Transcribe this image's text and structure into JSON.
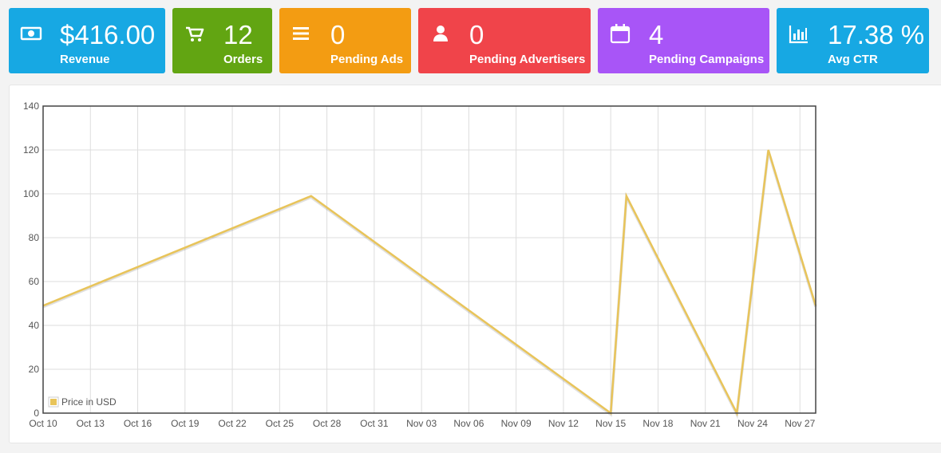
{
  "stats": [
    {
      "id": "revenue",
      "value": "$416.00",
      "label": "Revenue",
      "icon": "money-icon",
      "color": "#17a8e3"
    },
    {
      "id": "orders",
      "value": "12",
      "label": "Orders",
      "icon": "cart-icon",
      "color": "#62a512"
    },
    {
      "id": "pending_ads",
      "value": "0",
      "label": "Pending Ads",
      "icon": "list-icon",
      "color": "#f39c12"
    },
    {
      "id": "pending_advertisers",
      "value": "0",
      "label": "Pending Advertisers",
      "icon": "user-icon",
      "color": "#f0444a"
    },
    {
      "id": "pending_campaigns",
      "value": "4",
      "label": "Pending Campaigns",
      "icon": "calendar-icon",
      "color": "#a855f7"
    },
    {
      "id": "avg_ctr",
      "value": "17.38 %",
      "label": "Avg CTR",
      "icon": "bar-chart-icon",
      "color": "#17a8e3"
    }
  ],
  "chart_data": {
    "type": "line",
    "x_ticks": [
      "Oct 10",
      "Oct 13",
      "Oct 16",
      "Oct 19",
      "Oct 22",
      "Oct 25",
      "Oct 28",
      "Oct 31",
      "Nov 03",
      "Nov 06",
      "Nov 09",
      "Nov 12",
      "Nov 15",
      "Nov 18",
      "Nov 21",
      "Nov 24",
      "Nov 27"
    ],
    "y_ticks": [
      0,
      20,
      40,
      60,
      80,
      100,
      120,
      140
    ],
    "ylim": [
      0,
      140
    ],
    "xlim": [
      "Oct 10",
      "Nov 28"
    ],
    "grid": true,
    "legend_position": "bottom-left",
    "series": [
      {
        "name": "Price in USD",
        "color": "#e8c45a",
        "points": [
          {
            "x": "Oct 10",
            "y": 49
          },
          {
            "x": "Oct 27",
            "y": 99
          },
          {
            "x": "Nov 15",
            "y": 0
          },
          {
            "x": "Nov 16",
            "y": 99
          },
          {
            "x": "Nov 23",
            "y": 0
          },
          {
            "x": "Nov 25",
            "y": 120
          },
          {
            "x": "Nov 28",
            "y": 49
          }
        ]
      }
    ]
  }
}
